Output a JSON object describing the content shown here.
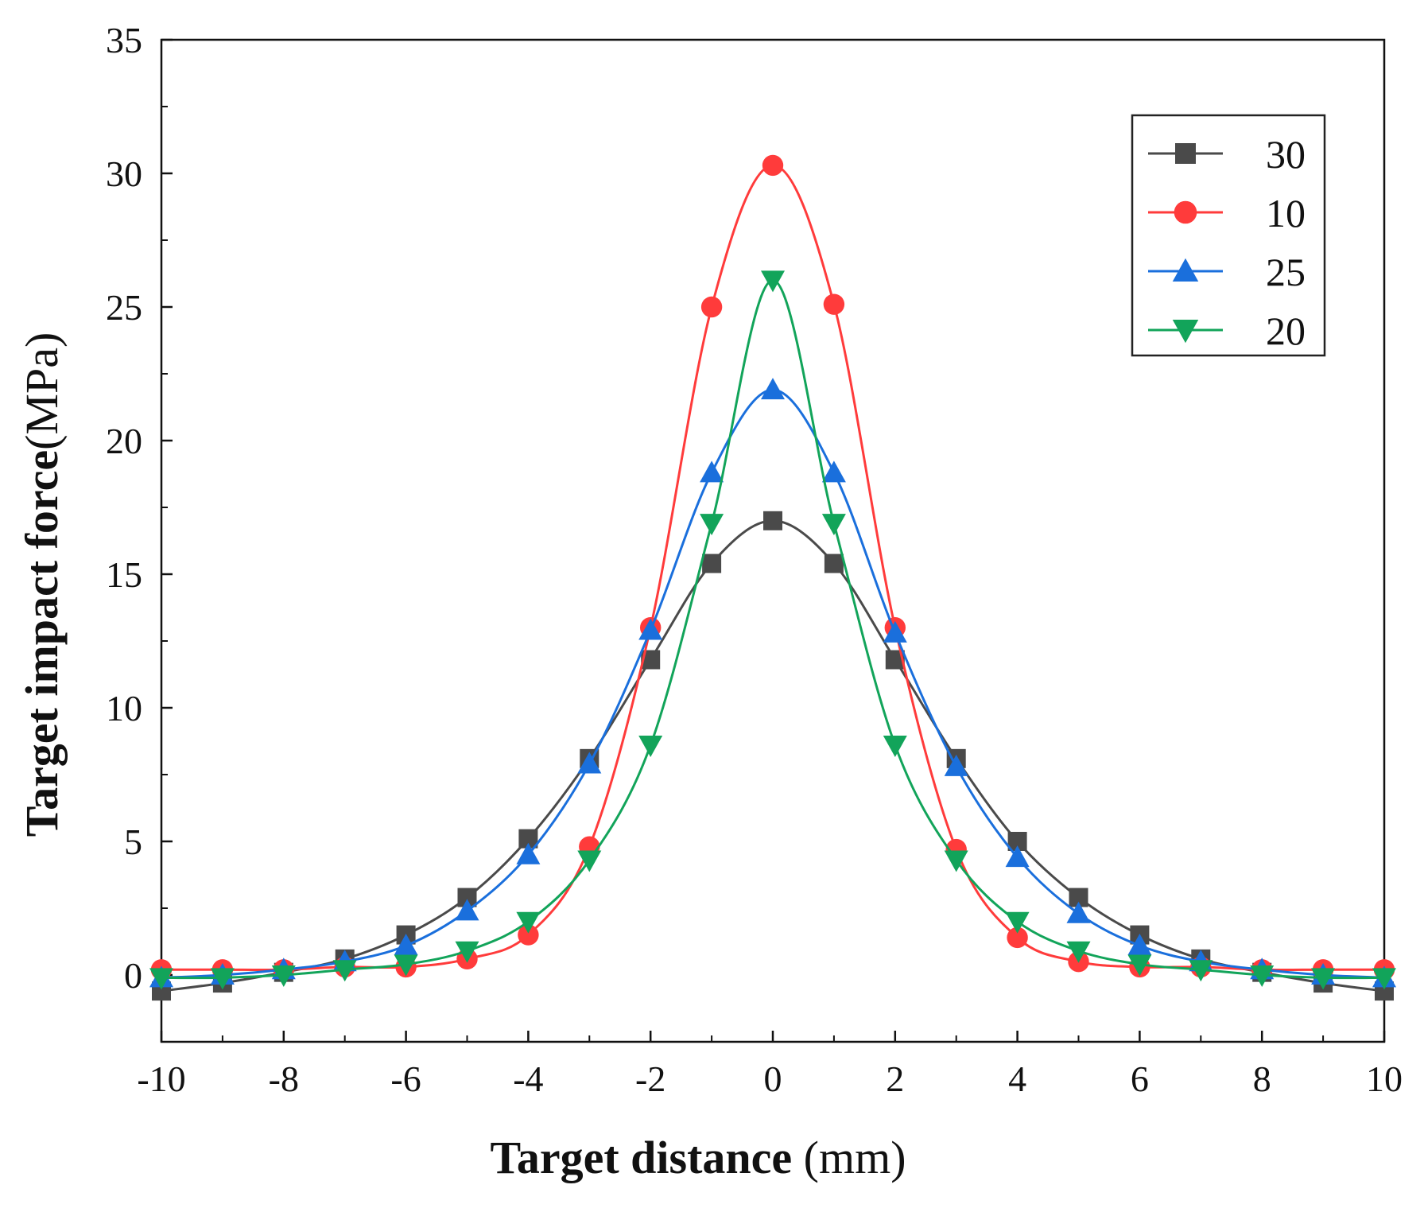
{
  "chart_data": {
    "type": "line",
    "title": "",
    "xlabel_bold": "Target distance",
    "xlabel_unit": " (mm)",
    "ylabel_bold": "Target impact force",
    "ylabel_unit": "(MPa)",
    "xlim": [
      -10,
      10
    ],
    "ylim": [
      -2.5,
      35
    ],
    "x_ticks": [
      -10,
      -8,
      -6,
      -4,
      -2,
      0,
      2,
      4,
      6,
      8,
      10
    ],
    "x_tick_labels": [
      "-10",
      "-8",
      "-6",
      "-4",
      "-2",
      "0",
      "2",
      "4",
      "6",
      "8",
      "10"
    ],
    "y_ticks": [
      0,
      5,
      10,
      15,
      20,
      25,
      30,
      35
    ],
    "y_tick_labels": [
      "0",
      "5",
      "10",
      "15",
      "20",
      "25",
      "30",
      "35"
    ],
    "grid": false,
    "legend_position": "top-right",
    "x": [
      -10,
      -9,
      -8,
      -7,
      -6,
      -5,
      -4,
      -3,
      -2,
      -1,
      0,
      1,
      2,
      3,
      4,
      5,
      6,
      7,
      8,
      9,
      10
    ],
    "series": [
      {
        "name": "30",
        "color": "#4a4a4a",
        "marker": "square",
        "values": [
          -0.6,
          -0.3,
          0.1,
          0.6,
          1.5,
          2.9,
          5.1,
          8.1,
          11.8,
          15.4,
          17.0,
          15.4,
          11.8,
          8.1,
          5.0,
          2.9,
          1.5,
          0.6,
          0.1,
          -0.3,
          -0.6
        ]
      },
      {
        "name": "10",
        "color": "#ff3b3b",
        "marker": "circle",
        "values": [
          0.2,
          0.2,
          0.2,
          0.3,
          0.3,
          0.6,
          1.5,
          4.8,
          13.0,
          25.0,
          30.3,
          25.1,
          13.0,
          4.7,
          1.4,
          0.5,
          0.3,
          0.3,
          0.2,
          0.2,
          0.2
        ]
      },
      {
        "name": "25",
        "color": "#1a6fdc",
        "marker": "triangle-up",
        "values": [
          -0.1,
          0.0,
          0.2,
          0.5,
          1.1,
          2.4,
          4.5,
          7.9,
          12.9,
          18.8,
          21.9,
          18.8,
          12.8,
          7.8,
          4.4,
          2.3,
          1.1,
          0.5,
          0.2,
          0.0,
          -0.1
        ]
      },
      {
        "name": "20",
        "color": "#12a45a",
        "marker": "triangle-down",
        "values": [
          -0.1,
          -0.1,
          0.0,
          0.2,
          0.4,
          0.9,
          2.0,
          4.3,
          8.6,
          16.9,
          26.0,
          16.9,
          8.6,
          4.3,
          2.0,
          0.9,
          0.4,
          0.2,
          0.0,
          -0.1,
          -0.1
        ]
      }
    ]
  }
}
